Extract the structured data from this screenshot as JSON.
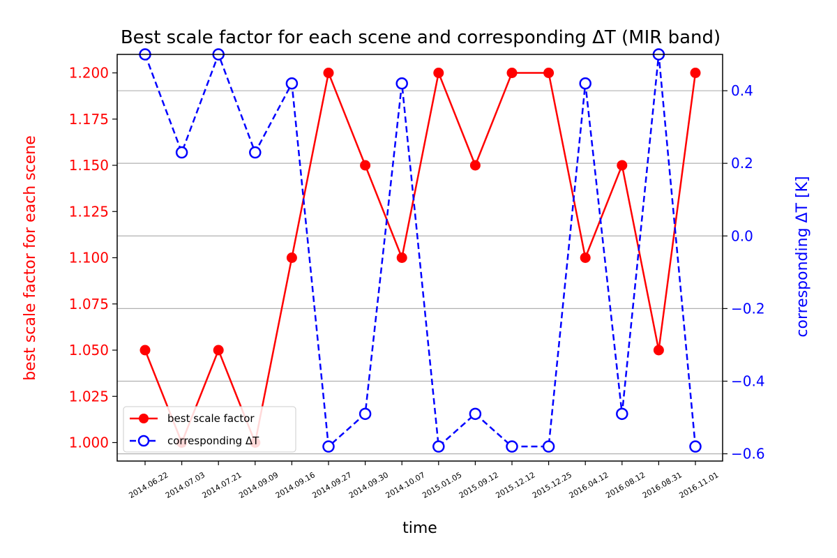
{
  "chart_data": {
    "type": "line",
    "title": "Best scale factor for each scene and corresponding ΔT (MIR band)",
    "xlabel": "time",
    "ylabel_left": "best scale factor for each scene",
    "ylabel_right": "corresponding ΔT [K]",
    "categories": [
      "2014.06.22",
      "2014.07.03",
      "2014.07.21",
      "2014.09.09",
      "2014.09.16",
      "2014.09.27",
      "2014.09.30",
      "2014.10.07",
      "2015.01.05",
      "2015.09.12",
      "2015.12.12",
      "2015.12.25",
      "2016.04.12",
      "2016.08.12",
      "2016.08.31",
      "2016.11.01"
    ],
    "ylim_left": [
      0.99,
      1.21
    ],
    "ylim_right": [
      -0.62,
      0.5
    ],
    "left_ticks": [
      "1.000",
      "1.025",
      "1.050",
      "1.075",
      "1.100",
      "1.125",
      "1.150",
      "1.175",
      "1.200"
    ],
    "right_ticks": [
      "−0.6",
      "−0.4",
      "−0.2",
      "0.0",
      "0.2",
      "0.4"
    ],
    "grid": "horizontal, right axis",
    "legend_position": "lower-left",
    "series": [
      {
        "name": "best scale factor",
        "axis": "left",
        "color": "#ff0000",
        "linestyle": "solid",
        "marker": "filled-circle",
        "values": [
          1.05,
          1.0,
          1.05,
          1.0,
          1.1,
          1.2,
          1.15,
          1.1,
          1.2,
          1.15,
          1.2,
          1.2,
          1.1,
          1.15,
          1.05,
          1.2
        ]
      },
      {
        "name": "corresponding ΔT",
        "axis": "right",
        "color": "#0000ff",
        "linestyle": "dashed",
        "marker": "open-circle",
        "values": [
          0.5,
          0.23,
          0.5,
          0.23,
          0.42,
          -0.58,
          -0.49,
          0.42,
          -0.58,
          -0.49,
          -0.58,
          -0.58,
          0.42,
          -0.49,
          0.5,
          -0.58
        ]
      }
    ]
  }
}
